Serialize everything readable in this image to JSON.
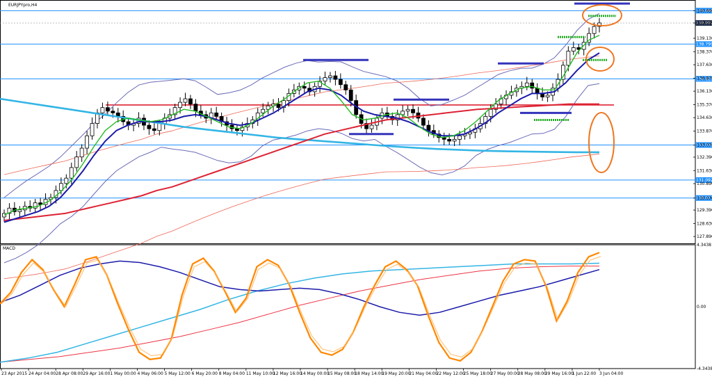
{
  "window": {
    "title": "EURJPYpro,H4",
    "indicator_label": "MACD"
  },
  "colors": {
    "background": "#ffffff",
    "grid": "#d9d9d9",
    "frame": "#000000",
    "bull_body": "#ffffff",
    "bear_body": "#000000",
    "price_tag": "#1c2a4a",
    "hline": "#1e90ff",
    "sma_fast": "#22bb22",
    "sma_mid": "#1a1aaa",
    "sma_slow": "#dd2233",
    "sma_long": "#33b5e5",
    "bollinger": "#6a6ab8",
    "bollinger_outer": "#ee6655",
    "resistance": "#dd2233",
    "marker_blue": "#3333bb",
    "marker_green": "#22aa22",
    "ellipse": "#ee7722",
    "macd_main": "#ff8800",
    "macd_signal": "#ee3344",
    "macd_slow": "#1a1aaa",
    "macd_long": "#33b5e5"
  },
  "chart_data": [
    {
      "type": "candlestick",
      "symbol": "EURJPY",
      "timeframe": "H4",
      "ylim": [
        127.5,
        141.3
      ],
      "y_ticks": [
        "140.690",
        "139.997",
        "139.130",
        "138.370",
        "137.630",
        "136.870",
        "136.130",
        "135.370",
        "134.630",
        "133.870",
        "133.070",
        "132.390",
        "131.630",
        "130.890",
        "130.070",
        "129.390",
        "128.630",
        "127.890"
      ],
      "current_price": "139.997",
      "x_ticks": [
        "23 Apr 2015",
        "24 Apr 04:00",
        "28 Apr 08:00",
        "29 Apr 16:00",
        "1 May 00:00",
        "4 May 06:00",
        "5 May 12:00",
        "6 May 20:00",
        "8 May 04:00",
        "11 May 10:00",
        "12 May 16:00",
        "14 May 00:00",
        "15 May 08:00",
        "18 May 14:00",
        "19 May 20:00",
        "21 May 04:00",
        "22 May 12:00",
        "25 May 18:00",
        "27 May 00:00",
        "28 May 08:00",
        "29 May 16:00",
        "1 Jun 22:00",
        "3 Jun 04:00"
      ],
      "horizontal_levels": [
        {
          "value": 140.696,
          "label": "140.696"
        },
        {
          "value": 138.799,
          "label": "138.799"
        },
        {
          "value": 136.829,
          "label": "136.829"
        },
        {
          "value": 133.078,
          "label": "133.078"
        },
        {
          "value": 131.092,
          "label": "131.092"
        },
        {
          "value": 130.073,
          "label": "130.073"
        }
      ],
      "resistance_level": 135.35,
      "close_series": [
        129.2,
        129.5,
        129.3,
        129.4,
        129.6,
        129.5,
        129.8,
        129.7,
        130.0,
        130.1,
        130.5,
        130.9,
        131.2,
        131.8,
        132.4,
        132.9,
        133.6,
        134.3,
        134.9,
        135.2,
        135.0,
        134.9,
        134.7,
        134.4,
        134.2,
        134.3,
        134.6,
        134.2,
        134.0,
        133.9,
        134.3,
        134.6,
        134.8,
        135.2,
        135.5,
        135.7,
        135.4,
        135.0,
        134.8,
        134.6,
        134.9,
        134.7,
        134.4,
        134.2,
        134.0,
        133.9,
        134.1,
        134.3,
        134.5,
        134.9,
        135.1,
        135.3,
        135.4,
        135.2,
        135.6,
        136.0,
        136.2,
        136.4,
        136.3,
        136.1,
        136.4,
        136.7,
        136.9,
        137.0,
        136.8,
        136.5,
        136.2,
        135.6,
        134.8,
        134.3,
        134.0,
        134.2,
        134.6,
        134.9,
        134.7,
        134.5,
        134.8,
        135.0,
        135.1,
        134.9,
        134.6,
        134.2,
        133.9,
        133.7,
        133.5,
        133.4,
        133.3,
        133.4,
        133.6,
        133.7,
        133.8,
        134.0,
        134.3,
        134.7,
        135.1,
        135.4,
        135.7,
        135.9,
        136.1,
        136.3,
        136.4,
        136.6,
        136.3,
        136.0,
        135.8,
        135.9,
        136.3,
        136.8,
        137.6,
        138.4,
        138.6,
        138.5,
        138.9,
        139.4,
        139.8,
        140.0
      ],
      "sma_fast": [
        129.1,
        129.4,
        129.5,
        129.6,
        129.9,
        130.4,
        131.1,
        132.0,
        133.0,
        133.9,
        134.4,
        134.6,
        134.5,
        134.4,
        134.5,
        134.8,
        135.1,
        135.0,
        134.7,
        134.4,
        134.1,
        134.0,
        134.3,
        134.8,
        135.3,
        135.7,
        136.2,
        136.6,
        136.7,
        136.3,
        135.6,
        134.8,
        134.5,
        134.6,
        134.8,
        134.9,
        134.6,
        134.1,
        133.7,
        133.5,
        133.6,
        133.9,
        134.4,
        135.0,
        135.6,
        136.0,
        136.3,
        136.4,
        136.2,
        136.2,
        137.2,
        138.3,
        139.0,
        139.3
      ],
      "sma_mid": [
        128.7,
        128.9,
        129.1,
        129.3,
        129.6,
        130.1,
        130.8,
        131.6,
        132.5,
        133.3,
        133.9,
        134.2,
        134.4,
        134.4,
        134.4,
        134.5,
        134.7,
        134.8,
        134.7,
        134.5,
        134.3,
        134.2,
        134.3,
        134.6,
        134.9,
        135.3,
        135.7,
        136.1,
        136.3,
        136.2,
        135.9,
        135.4,
        135.0,
        134.8,
        134.7,
        134.6,
        134.4,
        134.1,
        133.8,
        133.6,
        133.6,
        133.7,
        134.0,
        134.4,
        134.9,
        135.3,
        135.7,
        136.0,
        136.0,
        136.1,
        136.6,
        137.3,
        137.9,
        138.3
      ],
      "sma_slow": [
        128.8,
        128.9,
        129.0,
        129.1,
        129.2,
        129.4,
        129.6,
        129.8,
        130.0,
        130.2,
        130.5,
        130.7,
        131.0,
        131.3,
        131.6,
        131.9,
        132.2,
        132.5,
        132.8,
        133.1,
        133.4,
        133.7,
        133.9,
        134.1,
        134.3,
        134.5,
        134.6,
        134.7,
        134.8,
        134.9,
        135.0,
        135.1,
        135.15,
        135.2,
        135.25,
        135.3,
        135.35,
        135.4,
        135.4,
        135.4
      ],
      "sma_long": [
        135.7,
        135.5,
        135.3,
        135.1,
        134.9,
        134.7,
        134.5,
        134.3,
        134.1,
        133.95,
        133.8,
        133.65,
        133.5,
        133.4,
        133.3,
        133.2,
        133.1,
        133.0,
        132.92,
        132.85,
        132.8,
        132.75,
        132.72,
        132.7,
        132.68,
        132.67,
        132.67
      ],
      "markers": [
        {
          "kind": "blue",
          "value": 137.9
        },
        {
          "kind": "blue",
          "value": 135.65
        },
        {
          "kind": "blue",
          "value": 133.7
        },
        {
          "kind": "blue",
          "value": 137.7
        },
        {
          "kind": "blue",
          "value": 134.9
        },
        {
          "kind": "blue",
          "value": 141.1
        },
        {
          "kind": "green",
          "value": 140.4
        },
        {
          "kind": "green",
          "value": 139.2
        },
        {
          "kind": "green",
          "value": 137.9
        },
        {
          "kind": "green",
          "value": 134.5
        }
      ]
    },
    {
      "type": "line",
      "indicator": "MACD",
      "ylim": [
        -4.3438,
        4.3438
      ],
      "y_ticks": [
        "4.3438",
        "0.00",
        "-4.3438"
      ],
      "series": [
        {
          "values": [
            0.2,
            1.0,
            2.4,
            3.3,
            2.6,
            1.2,
            0.0,
            1.6,
            3.3,
            3.5,
            2.2,
            0.2,
            -1.6,
            -3.2,
            -3.7,
            -3.6,
            -2.3,
            0.8,
            3.0,
            3.4,
            2.5,
            1.1,
            -0.4,
            0.6,
            2.8,
            3.3,
            2.9,
            1.6,
            -0.4,
            -2.2,
            -3.2,
            -3.4,
            -3.0,
            -1.8,
            0.0,
            1.5,
            2.8,
            3.2,
            2.6,
            1.5,
            -0.6,
            -2.5,
            -3.6,
            -3.8,
            -3.2,
            -1.8,
            0.0,
            1.8,
            3.0,
            3.3,
            3.2,
            1.5,
            -1.0,
            0.4,
            2.4,
            3.5,
            3.8
          ]
        },
        {
          "values": [
            0.3,
            0.8,
            1.5,
            2.2,
            2.7,
            3.0,
            3.2,
            3.1,
            2.8,
            2.4,
            1.9,
            1.4,
            1.2,
            1.1,
            1.2,
            1.3,
            1.2,
            0.9,
            0.5,
            0.0,
            -0.4,
            -0.6,
            -0.4,
            0.0,
            0.4,
            0.8,
            1.1,
            1.4,
            1.8,
            2.2,
            2.6
          ]
        },
        {
          "values": [
            -3.9,
            -3.6,
            -3.2,
            -2.6,
            -2.0,
            -1.4,
            -0.8,
            -0.2,
            0.5,
            1.1,
            1.6,
            2.0,
            2.3,
            2.5,
            2.6,
            2.7,
            2.8,
            2.9,
            3.0,
            3.0,
            3.0,
            3.05
          ]
        },
        {
          "values": [
            -3.9,
            -3.7,
            -3.5,
            -3.2,
            -2.9,
            -2.5,
            -2.1,
            -1.6,
            -1.1,
            -0.5,
            0.1,
            0.6,
            1.1,
            1.5,
            1.9,
            2.2,
            2.5,
            2.7,
            2.8,
            2.85,
            2.85
          ]
        }
      ]
    }
  ]
}
